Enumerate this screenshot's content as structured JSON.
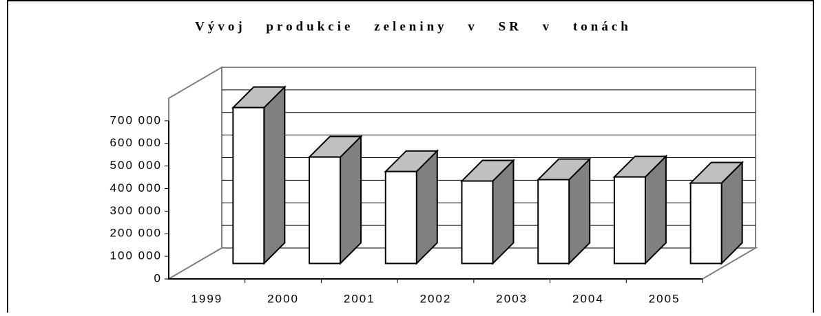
{
  "chart_data": {
    "type": "bar3d",
    "title": "Vývoj produkcie zeleniny v SR v tonách",
    "categories": [
      "1999",
      "2000",
      "2001",
      "2002",
      "2003",
      "2004",
      "2005"
    ],
    "values": [
      690000,
      471000,
      407000,
      365000,
      371000,
      383000,
      356000
    ],
    "color": "#ffffff",
    "side_color": "#808080",
    "top_color": "#c0c0c0",
    "ylim": [
      0,
      800000
    ],
    "yticks": [
      0,
      {
        "value": 100000,
        "label": "100 000"
      },
      {
        "value": 200000,
        "label": "200 000"
      },
      {
        "value": 300000,
        "label": "300 000"
      },
      {
        "value": 400000,
        "label": "400 000"
      },
      {
        "value": 500000,
        "label": "500 000"
      },
      {
        "value": 600000,
        "label": "600 000"
      },
      {
        "value": 700000,
        "label": "700 000"
      }
    ],
    "grid": true
  }
}
